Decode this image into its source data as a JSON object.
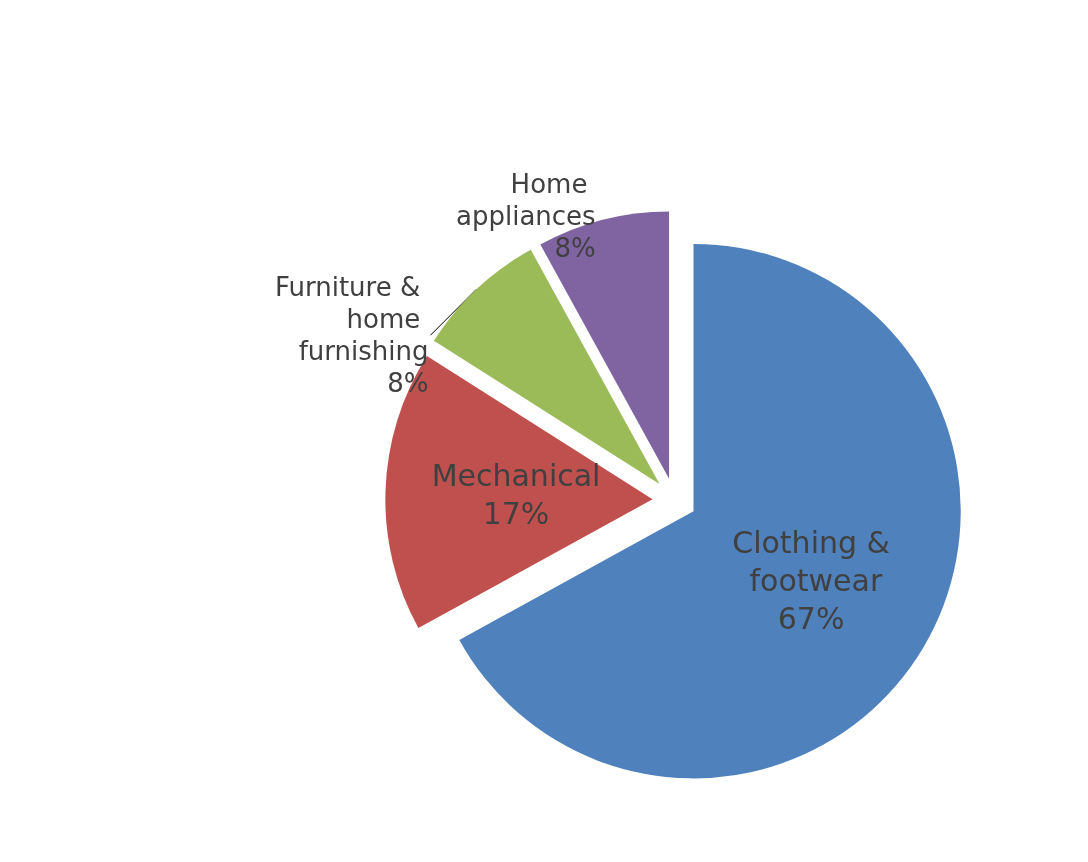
{
  "chart_data": {
    "type": "pie",
    "categories": [
      "Clothing & footwear",
      "Mechanical",
      "Furniture & home furnishing",
      "Home appliances"
    ],
    "values": [
      67,
      17,
      8,
      8
    ],
    "value_labels": [
      "67%",
      "17%",
      "8%",
      "8%"
    ],
    "colors": [
      "#4f81bd",
      "#c0504d",
      "#9bbb59",
      "#8064a2"
    ],
    "legend": false
  }
}
